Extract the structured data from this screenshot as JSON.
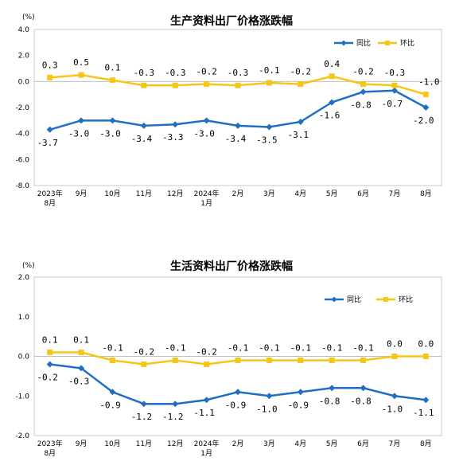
{
  "chart_data": [
    {
      "type": "line",
      "title": "生产资料出厂价格涨跌幅",
      "unit": "(%)",
      "categories": [
        "2023年\n8月",
        "9月",
        "10月",
        "11月",
        "12月",
        "2024年\n1月",
        "2月",
        "3月",
        "4月",
        "5月",
        "6月",
        "7月",
        "8月"
      ],
      "ylim": [
        -8.0,
        4.0
      ],
      "yticks": [
        "4.0",
        "2.0",
        "0.0",
        "-2.0",
        "-4.0",
        "-6.0",
        "-8.0"
      ],
      "ytick_values": [
        4,
        2,
        0,
        -2,
        -4,
        -6,
        -8
      ],
      "legend_position": "top-right",
      "series": [
        {
          "name": "同比",
          "color": "#1f6fc5",
          "marker": "diamond",
          "values": [
            -3.7,
            -3.0,
            -3.0,
            -3.4,
            -3.3,
            -3.0,
            -3.4,
            -3.5,
            -3.1,
            -1.6,
            -0.8,
            -0.7,
            -2.0
          ],
          "labels": [
            "-3.7",
            "-3.0",
            "-3.0",
            "-3.4",
            "-3.3",
            "-3.0",
            "-3.4",
            "-3.5",
            "-3.1",
            "-1.6",
            "-0.8",
            "-0.7",
            "-2.0"
          ]
        },
        {
          "name": "环比",
          "color": "#f5c518",
          "marker": "square",
          "values": [
            0.3,
            0.5,
            0.1,
            -0.3,
            -0.3,
            -0.2,
            -0.3,
            -0.1,
            -0.2,
            0.4,
            -0.2,
            -0.3,
            -1.0
          ],
          "labels": [
            "0.3",
            "0.5",
            "0.1",
            "-0.3",
            "-0.3",
            "-0.2",
            "-0.3",
            "-0.1",
            "-0.2",
            "0.4",
            "-0.2",
            "-0.3",
            "-1.0"
          ]
        }
      ]
    },
    {
      "type": "line",
      "title": "生活资料出厂价格涨跌幅",
      "unit": "(%)",
      "categories": [
        "2023年\n8月",
        "9月",
        "10月",
        "11月",
        "12月",
        "2024年\n1月",
        "2月",
        "3月",
        "4月",
        "5月",
        "6月",
        "7月",
        "8月"
      ],
      "ylim": [
        -2.0,
        2.0
      ],
      "yticks": [
        "2.0",
        "1.0",
        "0.0",
        "-1.0",
        "-2.0"
      ],
      "ytick_values": [
        2,
        1,
        0,
        -1,
        -2
      ],
      "legend_position": "top-right",
      "series": [
        {
          "name": "同比",
          "color": "#1f6fc5",
          "marker": "diamond",
          "values": [
            -0.2,
            -0.3,
            -0.9,
            -1.2,
            -1.2,
            -1.1,
            -0.9,
            -1.0,
            -0.9,
            -0.8,
            -0.8,
            -1.0,
            -1.1
          ],
          "labels": [
            "-0.2",
            "-0.3",
            "-0.9",
            "-1.2",
            "-1.2",
            "-1.1",
            "-0.9",
            "-1.0",
            "-0.9",
            "-0.8",
            "-0.8",
            "-1.0",
            "-1.1"
          ]
        },
        {
          "name": "环比",
          "color": "#f5c518",
          "marker": "square",
          "values": [
            0.1,
            0.1,
            -0.1,
            -0.2,
            -0.1,
            -0.2,
            -0.1,
            -0.1,
            -0.1,
            -0.1,
            -0.1,
            0.0,
            0.0
          ],
          "labels": [
            "0.1",
            "0.1",
            "-0.1",
            "-0.2",
            "-0.1",
            "-0.2",
            "-0.1",
            "-0.1",
            "-0.1",
            "-0.1",
            "-0.1",
            "0.0",
            "0.0"
          ]
        }
      ]
    }
  ]
}
